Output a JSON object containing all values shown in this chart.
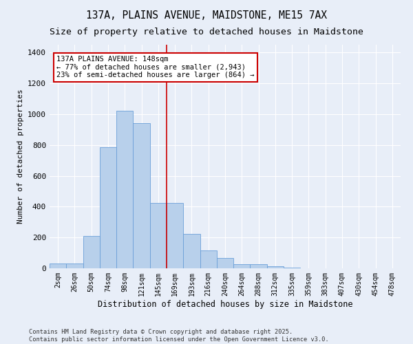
{
  "title": "137A, PLAINS AVENUE, MAIDSTONE, ME15 7AX",
  "subtitle": "Size of property relative to detached houses in Maidstone",
  "xlabel": "Distribution of detached houses by size in Maidstone",
  "ylabel": "Number of detached properties",
  "categories": [
    "2sqm",
    "26sqm",
    "50sqm",
    "74sqm",
    "98sqm",
    "121sqm",
    "145sqm",
    "169sqm",
    "193sqm",
    "216sqm",
    "240sqm",
    "264sqm",
    "288sqm",
    "312sqm",
    "335sqm",
    "359sqm",
    "383sqm",
    "407sqm",
    "430sqm",
    "454sqm",
    "478sqm"
  ],
  "values": [
    30,
    30,
    210,
    785,
    1020,
    940,
    425,
    425,
    225,
    115,
    65,
    25,
    25,
    15,
    5,
    2,
    2,
    0,
    0,
    0,
    0
  ],
  "bar_color": "#b8d0eb",
  "bar_edge_color": "#6a9fd8",
  "bg_color": "#e8eef8",
  "grid_color": "#c8d4e8",
  "annotation_text": "137A PLAINS AVENUE: 148sqm\n← 77% of detached houses are smaller (2,943)\n23% of semi-detached houses are larger (864) →",
  "annotation_box_color": "#ffffff",
  "annotation_box_edge": "#cc0000",
  "vline_color": "#cc0000",
  "vline_x_index": 6.5,
  "ylim": [
    0,
    1450
  ],
  "yticks": [
    0,
    200,
    400,
    600,
    800,
    1000,
    1200,
    1400
  ],
  "footer": "Contains HM Land Registry data © Crown copyright and database right 2025.\nContains public sector information licensed under the Open Government Licence v3.0.",
  "title_fontsize": 10.5,
  "subtitle_fontsize": 9.5,
  "tick_fontsize": 7,
  "ylabel_fontsize": 8,
  "xlabel_fontsize": 8.5,
  "annotation_fontsize": 7.5
}
